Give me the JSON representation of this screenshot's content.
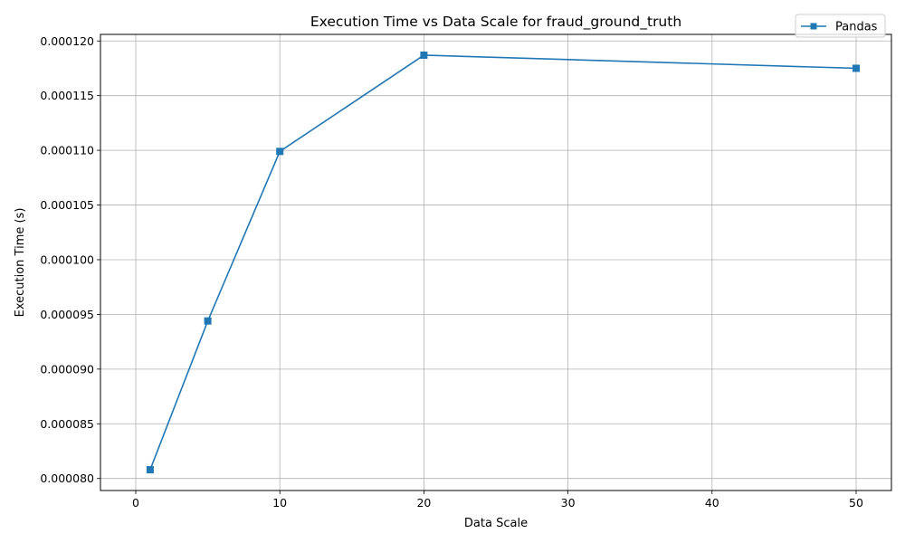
{
  "chart_data": {
    "type": "line",
    "title": "Execution Time vs Data Scale for fraud_ground_truth",
    "xlabel": "Data Scale",
    "ylabel": "Execution Time (s)",
    "xlim": [
      -2.45,
      52.45
    ],
    "ylim": [
      7.89e-05,
      0.0001206
    ],
    "xticks": [
      0,
      10,
      20,
      30,
      40,
      50
    ],
    "xtick_labels": [
      "0",
      "10",
      "20",
      "30",
      "40",
      "50"
    ],
    "yticks": [
      8e-05,
      8.5e-05,
      9e-05,
      9.5e-05,
      0.0001,
      0.000105,
      0.00011,
      0.000115,
      0.00012
    ],
    "ytick_labels": [
      "0.000080",
      "0.000085",
      "0.000090",
      "0.000095",
      "0.000100",
      "0.000105",
      "0.000110",
      "0.000115",
      "0.000120"
    ],
    "grid": true,
    "legend_position": "top-right",
    "series": [
      {
        "name": "Pandas",
        "color": "#1f77b4",
        "marker": "square",
        "x": [
          1,
          5,
          10,
          20,
          50
        ],
        "y": [
          8.08e-05,
          9.44e-05,
          0.0001099,
          0.0001187,
          0.0001175
        ]
      }
    ]
  }
}
